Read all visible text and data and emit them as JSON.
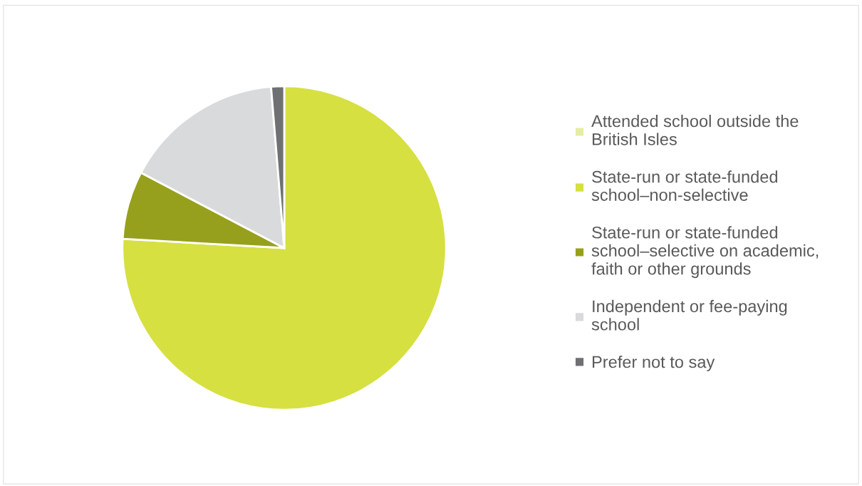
{
  "chart_data": {
    "type": "pie",
    "categories": [
      "Attended school outside the British Isles",
      "State-run or state-funded school–non-selective",
      "State-run or state-funded school–selective on academic, faith or other grounds",
      "Independent or fee-paying school",
      "Prefer not to say"
    ],
    "values": [
      0,
      75.9,
      6.8,
      16.0,
      1.3
    ],
    "colors": [
      "#e6eda0",
      "#d6e041",
      "#97a01c",
      "#d9dadc",
      "#6f7072"
    ],
    "legend": "right"
  }
}
